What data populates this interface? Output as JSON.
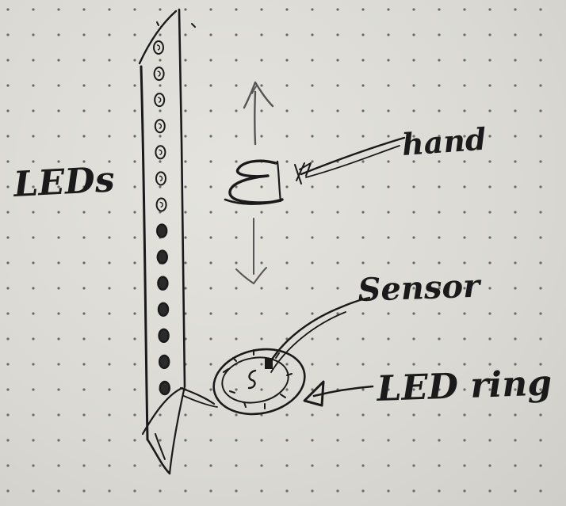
{
  "labels": {
    "leds": "LEDs",
    "hand": "hand",
    "sensor": "Sensor",
    "led_ring": "LED ring"
  },
  "led_strip": {
    "led_count": 14,
    "lit_fraction_from_bottom": 0.5
  },
  "colors": {
    "ink": "#1a1a1a",
    "paper": "#dcdbd6",
    "dots": "#6a6a66"
  },
  "icons": {
    "hand": "hand-icon",
    "up_arrow": "up-arrow-icon",
    "down_arrow": "down-arrow-icon"
  }
}
